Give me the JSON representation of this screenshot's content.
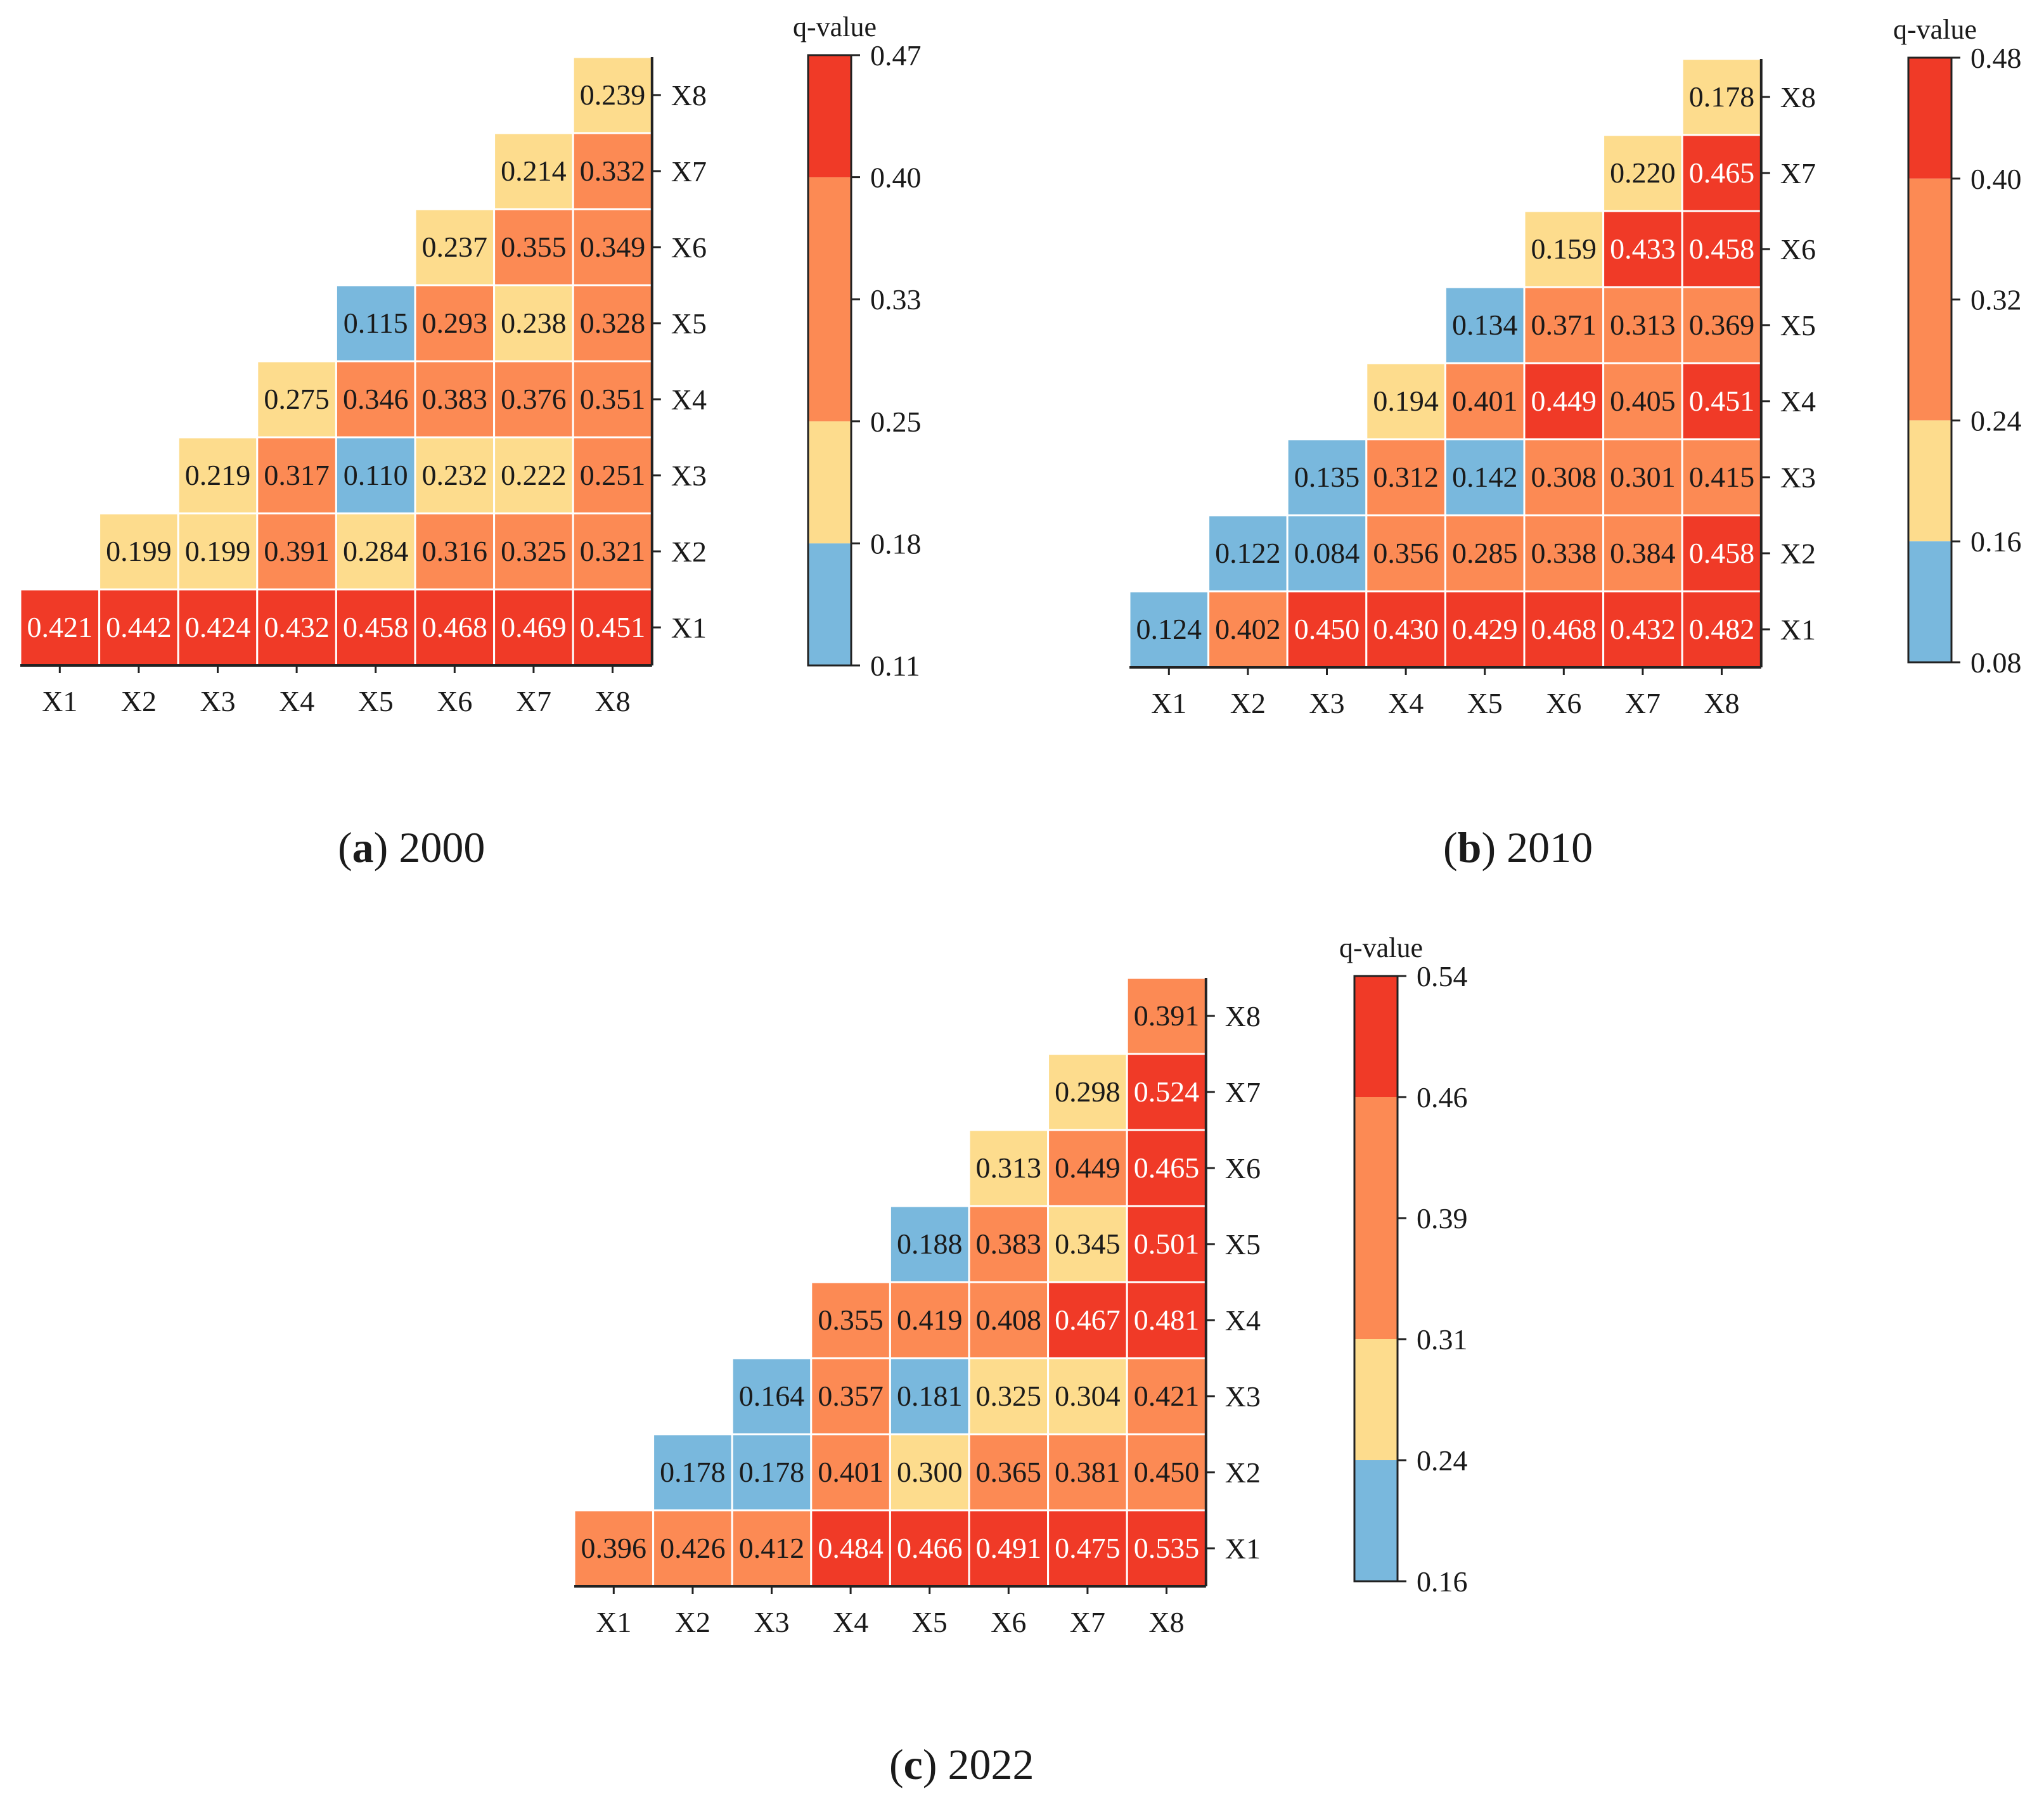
{
  "chart_data": [
    {
      "type": "heatmap",
      "panel_letter": "a",
      "panel_year": "2000",
      "variables": [
        "X1",
        "X2",
        "X3",
        "X4",
        "X5",
        "X6",
        "X7",
        "X8"
      ],
      "legend_title": "q-value",
      "legend_ticks": [
        "0.47",
        "0.40",
        "0.33",
        "0.25",
        "0.18",
        "0.11"
      ],
      "legend_colors": [
        "#f03a27",
        "#fc8a54",
        "#fddc8d",
        "#79b8dd"
      ],
      "rows": [
        {
          "label": "X8",
          "values": [
            "0.239"
          ],
          "colors": [
            2
          ]
        },
        {
          "label": "X7",
          "values": [
            "0.214",
            "0.332"
          ],
          "colors": [
            2,
            1
          ]
        },
        {
          "label": "X6",
          "values": [
            "0.237",
            "0.355",
            "0.349"
          ],
          "colors": [
            2,
            1,
            1
          ]
        },
        {
          "label": "X5",
          "values": [
            "0.115",
            "0.293",
            "0.238",
            "0.328"
          ],
          "colors": [
            3,
            1,
            2,
            1
          ]
        },
        {
          "label": "X4",
          "values": [
            "0.275",
            "0.346",
            "0.383",
            "0.376",
            "0.351"
          ],
          "colors": [
            2,
            1,
            1,
            1,
            1
          ]
        },
        {
          "label": "X3",
          "values": [
            "0.219",
            "0.317",
            "0.110",
            "0.232",
            "0.222",
            "0.251"
          ],
          "colors": [
            2,
            1,
            3,
            2,
            2,
            1
          ]
        },
        {
          "label": "X2",
          "values": [
            "0.199",
            "0.199",
            "0.391",
            "0.284",
            "0.316",
            "0.325",
            "0.321"
          ],
          "colors": [
            2,
            2,
            1,
            2,
            1,
            1,
            1
          ]
        },
        {
          "label": "X1",
          "values": [
            "0.421",
            "0.442",
            "0.424",
            "0.432",
            "0.458",
            "0.468",
            "0.469",
            "0.451"
          ],
          "colors": [
            0,
            0,
            0,
            0,
            0,
            0,
            0,
            0
          ]
        }
      ]
    },
    {
      "type": "heatmap",
      "panel_letter": "b",
      "panel_year": "2010",
      "variables": [
        "X1",
        "X2",
        "X3",
        "X4",
        "X5",
        "X6",
        "X7",
        "X8"
      ],
      "legend_title": "q-value",
      "legend_ticks": [
        "0.48",
        "0.40",
        "0.32",
        "0.24",
        "0.16",
        "0.08"
      ],
      "legend_colors": [
        "#f03a27",
        "#fc8a54",
        "#fddc8d",
        "#79b8dd"
      ],
      "rows": [
        {
          "label": "X8",
          "values": [
            "0.178"
          ],
          "colors": [
            2
          ]
        },
        {
          "label": "X7",
          "values": [
            "0.220",
            "0.465"
          ],
          "colors": [
            2,
            0
          ]
        },
        {
          "label": "X6",
          "values": [
            "0.159",
            "0.433",
            "0.458"
          ],
          "colors": [
            2,
            0,
            0
          ]
        },
        {
          "label": "X5",
          "values": [
            "0.134",
            "0.371",
            "0.313",
            "0.369"
          ],
          "colors": [
            3,
            1,
            1,
            1
          ]
        },
        {
          "label": "X4",
          "values": [
            "0.194",
            "0.401",
            "0.449",
            "0.405",
            "0.451"
          ],
          "colors": [
            2,
            1,
            0,
            1,
            0
          ]
        },
        {
          "label": "X3",
          "values": [
            "0.135",
            "0.312",
            "0.142",
            "0.308",
            "0.301",
            "0.415"
          ],
          "colors": [
            3,
            1,
            3,
            1,
            1,
            1
          ]
        },
        {
          "label": "X2",
          "values": [
            "0.122",
            "0.084",
            "0.356",
            "0.285",
            "0.338",
            "0.384",
            "0.458"
          ],
          "colors": [
            3,
            3,
            1,
            1,
            1,
            1,
            0
          ]
        },
        {
          "label": "X1",
          "values": [
            "0.124",
            "0.402",
            "0.450",
            "0.430",
            "0.429",
            "0.468",
            "0.432",
            "0.482"
          ],
          "colors": [
            3,
            1,
            0,
            0,
            0,
            0,
            0,
            0
          ]
        }
      ]
    },
    {
      "type": "heatmap",
      "panel_letter": "c",
      "panel_year": "2022",
      "variables": [
        "X1",
        "X2",
        "X3",
        "X4",
        "X5",
        "X6",
        "X7",
        "X8"
      ],
      "legend_title": "q-value",
      "legend_ticks": [
        "0.54",
        "0.46",
        "0.39",
        "0.31",
        "0.24",
        "0.16"
      ],
      "legend_colors": [
        "#f03a27",
        "#fc8a54",
        "#fddc8d",
        "#79b8dd"
      ],
      "rows": [
        {
          "label": "X8",
          "values": [
            "0.391"
          ],
          "colors": [
            1
          ]
        },
        {
          "label": "X7",
          "values": [
            "0.298",
            "0.524"
          ],
          "colors": [
            2,
            0
          ]
        },
        {
          "label": "X6",
          "values": [
            "0.313",
            "0.449",
            "0.465"
          ],
          "colors": [
            2,
            1,
            0
          ]
        },
        {
          "label": "X5",
          "values": [
            "0.188",
            "0.383",
            "0.345",
            "0.501"
          ],
          "colors": [
            3,
            1,
            2,
            0
          ]
        },
        {
          "label": "X4",
          "values": [
            "0.355",
            "0.419",
            "0.408",
            "0.467",
            "0.481"
          ],
          "colors": [
            1,
            1,
            1,
            0,
            0
          ]
        },
        {
          "label": "X3",
          "values": [
            "0.164",
            "0.357",
            "0.181",
            "0.325",
            "0.304",
            "0.421"
          ],
          "colors": [
            3,
            1,
            3,
            2,
            2,
            1
          ]
        },
        {
          "label": "X2",
          "values": [
            "0.178",
            "0.178",
            "0.401",
            "0.300",
            "0.365",
            "0.381",
            "0.450"
          ],
          "colors": [
            3,
            3,
            1,
            2,
            1,
            1,
            1
          ]
        },
        {
          "label": "X1",
          "values": [
            "0.396",
            "0.426",
            "0.412",
            "0.484",
            "0.466",
            "0.491",
            "0.475",
            "0.535"
          ],
          "colors": [
            1,
            1,
            1,
            0,
            0,
            0,
            0,
            0
          ]
        }
      ]
    }
  ]
}
